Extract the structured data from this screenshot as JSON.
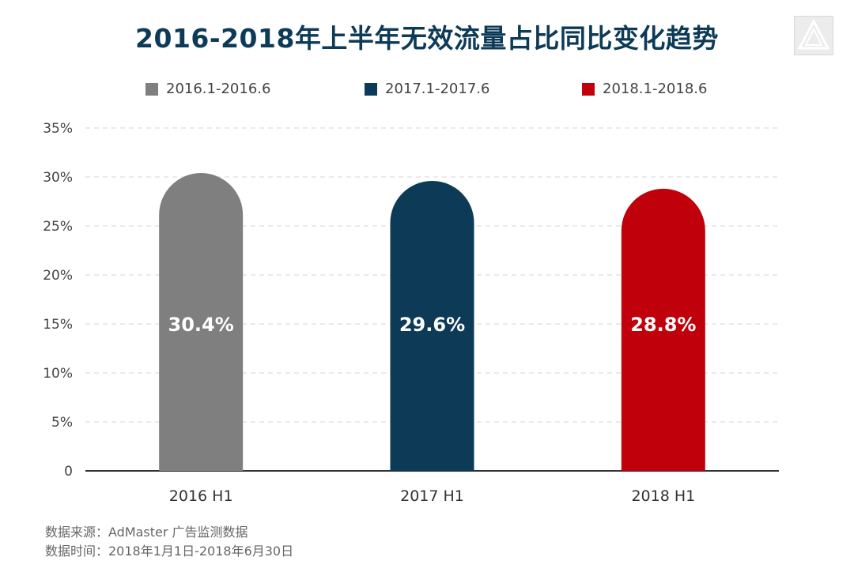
{
  "title": "2016-2018年上半年无效流量占比同比变化趋势",
  "logo_icon": "triangle-logo-icon",
  "source": {
    "line1": "数据来源：AdMaster 广告监测数据",
    "line2": "数据时间：2018年1月1日-2018年6月30日"
  },
  "chart_data": {
    "type": "bar",
    "title": "2016-2018年上半年无效流量占比同比变化趋势",
    "categories": [
      "2016 H1",
      "2017 H1",
      "2018 H1"
    ],
    "series": [
      {
        "name": "2016.1-2016.6",
        "color": "#7f7f7f",
        "category": "2016 H1",
        "value": 30.4,
        "label": "30.4%"
      },
      {
        "name": "2017.1-2017.6",
        "color": "#0c3a57",
        "category": "2017 H1",
        "value": 29.6,
        "label": "29.6%"
      },
      {
        "name": "2018.1-2018.6",
        "color": "#c0000b",
        "category": "2018 H1",
        "value": 28.8,
        "label": "28.8%"
      }
    ],
    "y_ticks": [
      "0",
      "5%",
      "10%",
      "15%",
      "20%",
      "25%",
      "30%",
      "35%"
    ],
    "y_tick_values": [
      0,
      5,
      10,
      15,
      20,
      25,
      30,
      35
    ],
    "ylim": [
      0,
      35
    ],
    "grid": true,
    "grid_style": "dashed",
    "legend_position": "top-center",
    "bar_shape": "rounded-top"
  }
}
